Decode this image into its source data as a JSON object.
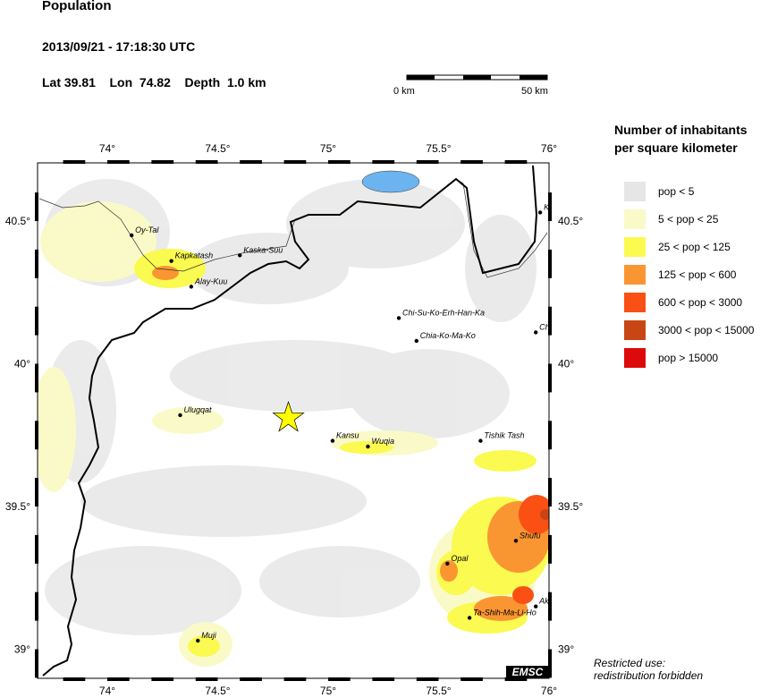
{
  "header": {
    "title": "Population",
    "datetime": "2013/09/21 - 17:18:30 UTC",
    "lat_label": "Lat 39.81",
    "lon_label": "Lon  74.82",
    "depth_label": "Depth  1.0 km"
  },
  "scale_bar": {
    "start": "0 km",
    "end": "50 km"
  },
  "legend": {
    "title_line1": "Number of inhabitants",
    "title_line2": "per square kilometer",
    "items": [
      {
        "label": "pop < 5",
        "color": "#e6e6e6"
      },
      {
        "label": "5 < pop < 25",
        "color": "#fafac8"
      },
      {
        "label": "25 < pop < 125",
        "color": "#fafa50"
      },
      {
        "label": "125 < pop < 600",
        "color": "#fa9632"
      },
      {
        "label": "600 < pop < 3000",
        "color": "#fa5014"
      },
      {
        "label": "3000 < pop < 15000",
        "color": "#c84614"
      },
      {
        "label": "pop > 15000",
        "color": "#dc0a0a"
      }
    ]
  },
  "axes": {
    "lon_ticks": [
      "74°",
      "74.5°",
      "75°",
      "75.5°",
      "76°"
    ],
    "lat_ticks": [
      "40.5°",
      "40°",
      "39.5°",
      "39°"
    ]
  },
  "epicenter": {
    "lat": 39.81,
    "lon": 74.82,
    "icon": "star-icon",
    "color": "#ffff00"
  },
  "cities": [
    {
      "name": "Oy-Tal",
      "lon": 74.11,
      "lat": 40.45
    },
    {
      "name": "Kapkatash",
      "lon": 74.29,
      "lat": 40.36
    },
    {
      "name": "Kaska-Suu",
      "lon": 74.6,
      "lat": 40.38
    },
    {
      "name": "Alay-Kuu",
      "lon": 74.38,
      "lat": 40.27
    },
    {
      "name": "Chi-Su-Ko-Erh-Han-Ka",
      "lon": 75.32,
      "lat": 40.16
    },
    {
      "name": "Chia-Ko-Ma-Ko",
      "lon": 75.4,
      "lat": 40.08
    },
    {
      "name": "Ch",
      "lon": 75.94,
      "lat": 40.11
    },
    {
      "name": "K",
      "lon": 75.96,
      "lat": 40.53
    },
    {
      "name": "Ulugqat",
      "lon": 74.33,
      "lat": 39.82
    },
    {
      "name": "Kansu",
      "lon": 75.02,
      "lat": 39.73
    },
    {
      "name": "Wuqia",
      "lon": 75.18,
      "lat": 39.71
    },
    {
      "name": "Tishik Tash",
      "lon": 75.69,
      "lat": 39.73
    },
    {
      "name": "Shufu",
      "lon": 75.85,
      "lat": 39.38
    },
    {
      "name": "Opal",
      "lon": 75.54,
      "lat": 39.3
    },
    {
      "name": "Akt",
      "lon": 75.94,
      "lat": 39.15
    },
    {
      "name": "Ta-Shih-Ma-Li-Ho",
      "lon": 75.64,
      "lat": 39.11
    },
    {
      "name": "Muji",
      "lon": 74.41,
      "lat": 39.03
    }
  ],
  "logo": "EMSC",
  "footer": {
    "line1": "Restricted use:",
    "line2": "redistribution forbidden"
  }
}
